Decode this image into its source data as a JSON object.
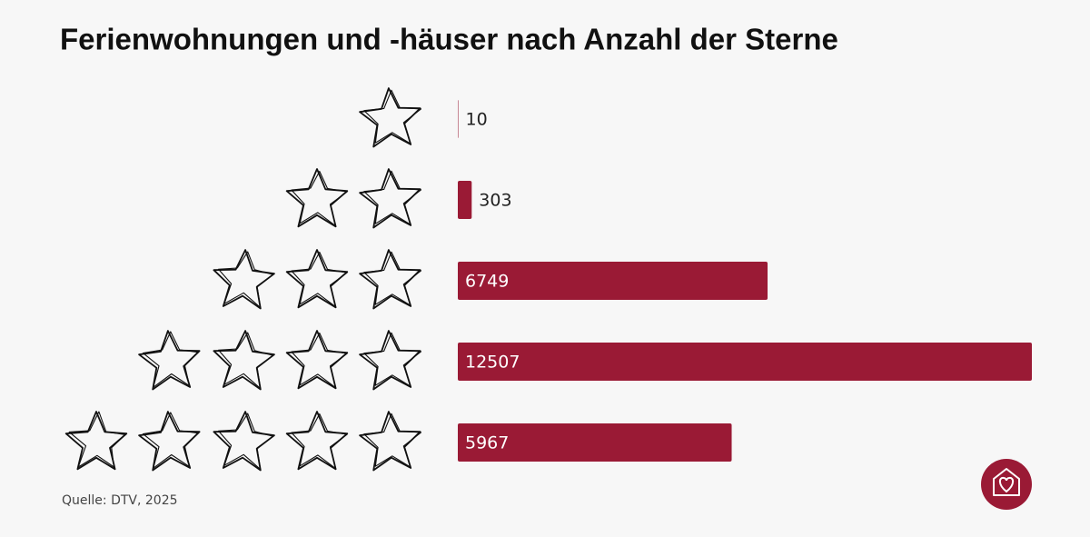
{
  "chart_data": {
    "type": "bar",
    "orientation": "horizontal",
    "title": "Ferienwohnungen und -häuser nach Anzahl der Sterne",
    "categories": [
      null,
      null,
      null,
      null,
      null
    ],
    "values": [
      10,
      303,
      6749,
      12507,
      5967
    ],
    "color": "#9a1a35",
    "source": "Quelle: DTV, 2025"
  }
}
